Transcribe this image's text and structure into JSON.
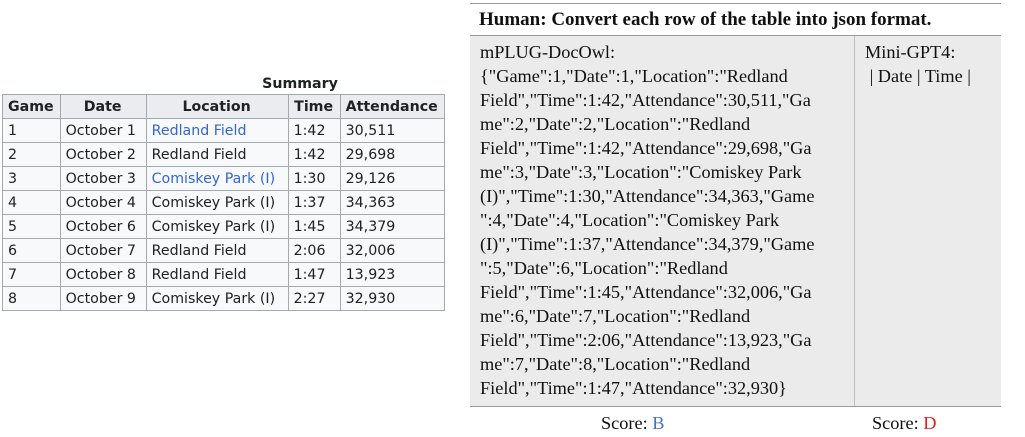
{
  "summary": {
    "caption": "Summary",
    "columns": [
      "Game",
      "Date",
      "Location",
      "Time",
      "Attendance"
    ],
    "rows": [
      {
        "game": "1",
        "date": "October 1",
        "location": "Redland Field",
        "location_link": true,
        "time": "1:42",
        "attendance": "30,511"
      },
      {
        "game": "2",
        "date": "October 2",
        "location": "Redland Field",
        "location_link": false,
        "time": "1:42",
        "attendance": "29,698"
      },
      {
        "game": "3",
        "date": "October 3",
        "location": "Comiskey Park (I)",
        "location_link": true,
        "time": "1:30",
        "attendance": "29,126"
      },
      {
        "game": "4",
        "date": "October 4",
        "location": "Comiskey Park (I)",
        "location_link": false,
        "time": "1:37",
        "attendance": "34,363"
      },
      {
        "game": "5",
        "date": "October 6",
        "location": "Comiskey Park (I)",
        "location_link": false,
        "time": "1:45",
        "attendance": "34,379"
      },
      {
        "game": "6",
        "date": "October 7",
        "location": "Redland Field",
        "location_link": false,
        "time": "2:06",
        "attendance": "32,006"
      },
      {
        "game": "7",
        "date": "October 8",
        "location": "Redland Field",
        "location_link": false,
        "time": "1:47",
        "attendance": "13,923"
      },
      {
        "game": "8",
        "date": "October 9",
        "location": "Comiskey Park (I)",
        "location_link": false,
        "time": "2:27",
        "attendance": "32,930"
      }
    ],
    "link_color": "#3366cc"
  },
  "panel": {
    "prompt": "Human: Convert each row of the table into json format.",
    "owl": {
      "name": "mPLUG-DocOwl:",
      "lines": [
        "{\"Game\":1,\"Date\":1,\"Location\":\"Redland",
        "Field\",\"Time\":1:42,\"Attendance\":30,511,\"Ga",
        "me\":2,\"Date\":2,\"Location\":\"Redland",
        "Field\",\"Time\":1:42,\"Attendance\":29,698,\"Ga",
        "me\":3,\"Date\":3,\"Location\":\"Comiskey Park",
        "(I)\",\"Time\":1:30,\"Attendance\":34,363,\"Game",
        "\":4,\"Date\":4,\"Location\":\"Comiskey Park",
        "(I)\",\"Time\":1:37,\"Attendance\":34,379,\"Game",
        "\":5,\"Date\":6,\"Location\":\"Redland",
        "Field\",\"Time\":1:45,\"Attendance\":32,006,\"Ga",
        "me\":6,\"Date\":7,\"Location\":\"Redland",
        "Field\",\"Time\":2:06,\"Attendance\":13,923,\"Ga",
        "me\":7,\"Date\":8,\"Location\":\"Redland",
        "Field\",\"Time\":1:47,\"Attendance\":32,930}"
      ],
      "score_label": "Score:",
      "score_value": "B",
      "score_color": "#3f72c8"
    },
    "gpt": {
      "name": "Mini-GPT4:",
      "lines": [
        " | Date | Time |"
      ],
      "score_label": "Score:",
      "score_value": "D",
      "score_color": "#e0201a"
    }
  }
}
